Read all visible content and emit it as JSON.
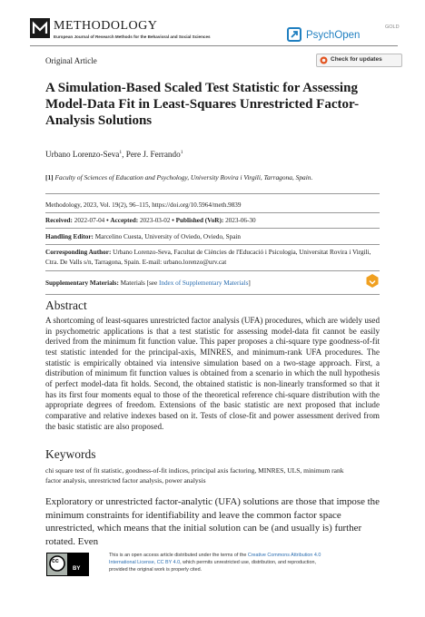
{
  "header": {
    "journal": "METHODOLOGY",
    "journal_subtitle": "European Journal of Research Methods for the Behavioral and Social Sciences",
    "publisher": "PsychOpen",
    "publisher_tier": "GOLD"
  },
  "article_type": "Original Article",
  "check_updates": "Check for updates",
  "title": "A Simulation-Based Scaled Test Statistic for Assessing Model-Data Fit in Least-Squares Unrestricted Factor-Analysis Solutions",
  "authors": [
    {
      "name": "Urbano Lorenzo-Seva",
      "affiliation": "1"
    },
    {
      "name": "Pere J. Ferrando",
      "affiliation": "1"
    }
  ],
  "author_separator": ", ",
  "affiliation": {
    "mark": "[1]",
    "text": "Faculty of Sciences of Education and Psychology, University Rovira i Virgili, Tarragona, Spain."
  },
  "citation": "Methodology, 2023, Vol. 19(2), 96–115, https://doi.org/10.5964/meth.9839",
  "dates": [
    {
      "label": "Received:",
      "value": "2022-07-04"
    },
    {
      "label": "Accepted:",
      "value": "2023-03-02"
    },
    {
      "label": "Published (VoR):",
      "value": "2023-06-30"
    }
  ],
  "date_separator": "•",
  "handling_editor": {
    "label": "Handling Editor:",
    "value": "Marcelino Cuesta, University of Oviedo, Oviedo, Spain"
  },
  "corresponding_author": {
    "label": "Corresponding Author:",
    "value": "Urbano Lorenzo-Seva, Facultat de Ciències de l'Educació i Psicologia, Universitat Rovira i Virgili, Ctra. De Valls s/n, Tarragona, Spain. E-mail: urbano.lorenzo@urv.cat"
  },
  "supplementary": {
    "label": "Supplementary Materials:",
    "prefix": "Materials [see ",
    "link": "Index of Supplementary Materials",
    "suffix": "]"
  },
  "abstract": {
    "heading": "Abstract",
    "text": "A shortcoming of least-squares unrestricted factor analysis (UFA) procedures, which are widely used in psychometric applications is that a test statistic for assessing model-data fit cannot be easily derived from the minimum fit function value. This paper proposes a chi-square type goodness-of-fit test statistic intended for the principal-axis, MINRES, and minimum-rank UFA procedures. The statistic is empirically obtained via intensive simulation based on a two-stage approach. First, a distribution of minimum fit function values is obtained from a scenario in which the null hypothesis of perfect model-data fit holds. Second, the obtained statistic is non-linearly transformed so that it has its first four moments equal to those of the theoretical reference chi-square distribution with the appropriate degrees of freedom. Extensions of the basic statistic are next proposed that include comparative and relative indexes based on it. Tests of close-fit and power assessment derived from the basic statistic are also proposed."
  },
  "keywords": {
    "heading": "Keywords",
    "text": "chi square test of fit statistic, goodness-of-fit indices, principal axis factoring, MINRES, ULS, minimum rank factor analysis, unrestricted factor analysis, power analysis"
  },
  "body": "Exploratory or unrestricted factor-analytic (UFA) solutions are those that impose the minimum constraints for identifiability and leave the common factor space unrestricted, which means that the initial solution can be (and usually is) further rotated. Even",
  "footer": {
    "badge_cc": "cc",
    "badge_by": "BY",
    "prefix": "This is an open access article distributed under the terms of the ",
    "link": "Creative Commons Attribution 4.0 International License, CC BY 4.0",
    "suffix": ", which permits unrestricted use, distribution, and reproduction, provided the original work is properly cited."
  }
}
